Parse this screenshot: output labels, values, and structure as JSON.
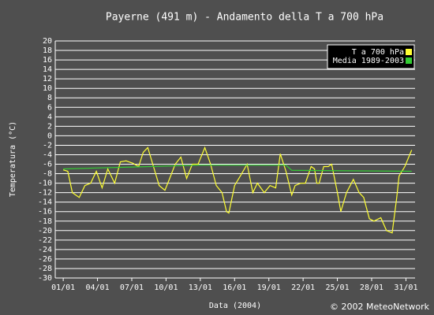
{
  "chart_data": {
    "type": "line",
    "title": "Payerne (491 m) - Andamento della T a 700 hPa",
    "x_label": "Data (2004)",
    "y_label": "Temperatura (°C)",
    "copyright": "© 2002 MeteoNetwork",
    "xlim": [
      0.3,
      31.8
    ],
    "xticks": [
      {
        "value": 1,
        "label": "01/01"
      },
      {
        "value": 4,
        "label": "04/01"
      },
      {
        "value": 7,
        "label": "07/01"
      },
      {
        "value": 10,
        "label": "10/01"
      },
      {
        "value": 13,
        "label": "13/01"
      },
      {
        "value": 16,
        "label": "16/01"
      },
      {
        "value": 19,
        "label": "19/01"
      },
      {
        "value": 22,
        "label": "22/01"
      },
      {
        "value": 25,
        "label": "25/01"
      },
      {
        "value": 28,
        "label": "28/01"
      },
      {
        "value": 31,
        "label": "31/01"
      }
    ],
    "ylim": [
      -30,
      20
    ],
    "yticks": [
      20,
      18,
      16,
      14,
      12,
      10,
      8,
      6,
      4,
      2,
      0,
      -2,
      -4,
      -6,
      -8,
      -10,
      -12,
      -14,
      -16,
      -18,
      -20,
      -22,
      -24,
      -26,
      -28,
      -30
    ],
    "grid": true,
    "legend": "top-right",
    "series": [
      {
        "name": "T a 700 hPa",
        "color": "#ffff33",
        "x": [
          1.0,
          1.4,
          1.8,
          2.4,
          2.9,
          3.4,
          3.9,
          4.4,
          4.9,
          5.5,
          6.0,
          6.5,
          7.1,
          7.6,
          8.0,
          8.4,
          8.9,
          9.4,
          9.9,
          10.4,
          10.8,
          11.3,
          11.8,
          12.3,
          12.8,
          13.4,
          13.9,
          14.4,
          14.9,
          15.3,
          15.5,
          16.0,
          16.5,
          17.1,
          17.6,
          18.0,
          18.6,
          19.1,
          19.6,
          20.0,
          20.5,
          21.0,
          21.3,
          21.8,
          22.2,
          22.7,
          23.0,
          23.2,
          23.4,
          23.8,
          24.2,
          24.5,
          25.0,
          25.3,
          25.8,
          26.4,
          26.9,
          27.3,
          27.8,
          28.2,
          28.8,
          29.3,
          29.8,
          30.2,
          30.4,
          30.9,
          31.5
        ],
        "values": [
          -7.2,
          -7.5,
          -12,
          -13,
          -10.5,
          -10,
          -7.5,
          -11,
          -7,
          -10,
          -5.5,
          -5.3,
          -5.8,
          -6.5,
          -3.5,
          -2.5,
          -6.5,
          -10.5,
          -11.5,
          -8.5,
          -6,
          -4.5,
          -9,
          -6,
          -6,
          -2.5,
          -6,
          -10.5,
          -12,
          -16,
          -16.3,
          -10.5,
          -8.5,
          -6,
          -12,
          -10,
          -12,
          -10.5,
          -11,
          -3.8,
          -7.5,
          -12.5,
          -10.5,
          -10,
          -10,
          -6.5,
          -7,
          -10,
          -10,
          -6.5,
          -6.5,
          -6,
          -12,
          -16,
          -12,
          -9.2,
          -12,
          -13,
          -17.5,
          -18,
          -17.3,
          -20,
          -20.5,
          -13,
          -8.5,
          -6.5,
          -3
        ]
      },
      {
        "name": "Media 1989-2003",
        "color": "#33cc33",
        "x": [
          1.0,
          7,
          13,
          20.5,
          21.0,
          26,
          31.5
        ],
        "values": [
          -7,
          -6.6,
          -6.2,
          -6.2,
          -7.3,
          -7.4,
          -7.5
        ]
      }
    ]
  }
}
